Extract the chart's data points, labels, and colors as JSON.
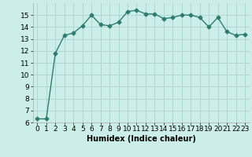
{
  "x": [
    0,
    1,
    2,
    3,
    4,
    5,
    6,
    7,
    8,
    9,
    10,
    11,
    12,
    13,
    14,
    15,
    16,
    17,
    18,
    19,
    20,
    21,
    22,
    23
  ],
  "y": [
    6.3,
    6.3,
    11.8,
    13.3,
    13.5,
    14.1,
    15.0,
    14.2,
    14.1,
    14.4,
    15.3,
    15.4,
    15.1,
    15.1,
    14.7,
    14.8,
    15.0,
    15.0,
    14.8,
    14.0,
    14.8,
    13.6,
    13.3,
    13.4
  ],
  "line_color": "#2e7d6e",
  "marker": "D",
  "marker_size": 2.5,
  "bg_color": "#cceee8",
  "grid_color": "#aad4cc",
  "xlabel": "Humidex (Indice chaleur)",
  "xlim": [
    -0.5,
    23.5
  ],
  "ylim": [
    6,
    16
  ],
  "yticks": [
    6,
    7,
    8,
    9,
    10,
    11,
    12,
    13,
    14,
    15
  ],
  "xticks": [
    0,
    1,
    2,
    3,
    4,
    5,
    6,
    7,
    8,
    9,
    10,
    11,
    12,
    13,
    14,
    15,
    16,
    17,
    18,
    19,
    20,
    21,
    22,
    23
  ],
  "xlabel_fontsize": 7,
  "tick_fontsize": 6.5,
  "line_width": 1.0
}
